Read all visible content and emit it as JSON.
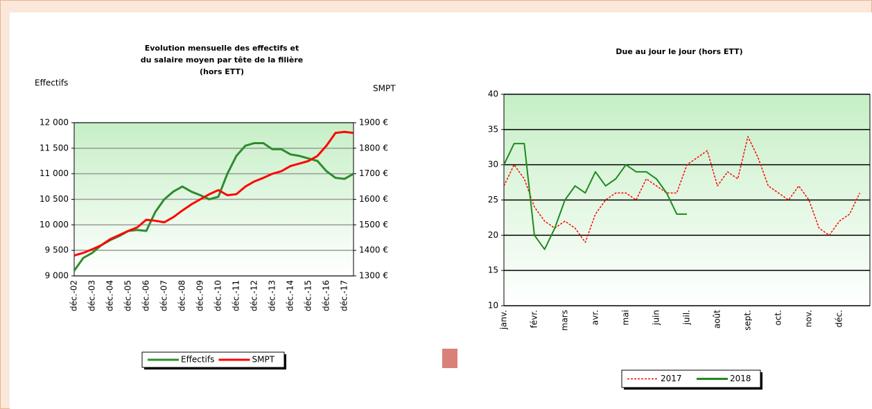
{
  "chart_data": [
    {
      "type": "line",
      "title": [
        "Evolution mensuelle des effectifs et",
        "du salaire moyen par tête de la filière",
        "(hors ETT)"
      ],
      "ylabel": "Effectifs",
      "y2label": "SMPT",
      "categories": [
        "déc.-02",
        null,
        "déc.-03",
        null,
        "déc.-04",
        null,
        "déc.-05",
        null,
        "déc.-06",
        null,
        "déc.-07",
        null,
        "déc.-08",
        null,
        "déc.-09",
        null,
        "déc.-10",
        null,
        "déc.-11",
        null,
        "déc.-12",
        null,
        "déc.-13",
        null,
        "déc.-14",
        null,
        "déc.-15",
        null,
        "déc.-16",
        null,
        "déc.-17",
        null
      ],
      "series": [
        {
          "name": "Effectifs",
          "color": "#2e8b2e",
          "values": [
            9100,
            9350,
            9450,
            9600,
            9700,
            9780,
            9880,
            9900,
            9880,
            10250,
            10500,
            10650,
            10750,
            10650,
            10580,
            10500,
            10550,
            11000,
            11350,
            11550,
            11600,
            11600,
            11480,
            11480,
            11380,
            11350,
            11300,
            11250,
            11050,
            10920,
            10900,
            11000
          ]
        },
        {
          "name": "SMPT",
          "color": "#ff0000",
          "axis": "y2",
          "values": [
            1380,
            1390,
            1404,
            1420,
            1444,
            1460,
            1476,
            1490,
            1520,
            1516,
            1510,
            1530,
            1556,
            1580,
            1600,
            1620,
            1636,
            1616,
            1620,
            1650,
            1670,
            1684,
            1700,
            1710,
            1730,
            1740,
            1750,
            1770,
            1810,
            1860,
            1864,
            1860
          ]
        }
      ],
      "ylim": [
        9000,
        12000
      ],
      "yticks": [
        {
          "value": 9000,
          "label": "9 000"
        },
        {
          "value": 9500,
          "label": "9 500"
        },
        {
          "value": 10000,
          "label": "10 000"
        },
        {
          "value": 10500,
          "label": "10 500"
        },
        {
          "value": 11000,
          "label": "11 000"
        },
        {
          "value": 11500,
          "label": "11 500"
        },
        {
          "value": 12000,
          "label": "12 000"
        }
      ],
      "y2lim": [
        1300,
        1900
      ],
      "y2ticks": [
        {
          "value": 1300,
          "label": "1300 €"
        },
        {
          "value": 1400,
          "label": "1400 €"
        },
        {
          "value": 1500,
          "label": "1500 €"
        },
        {
          "value": 1600,
          "label": "1600 €"
        },
        {
          "value": 1700,
          "label": "1700 €"
        },
        {
          "value": 1800,
          "label": "1800 €"
        },
        {
          "value": 1900,
          "label": "1900 €"
        }
      ],
      "grid": true,
      "legend": "bottom"
    },
    {
      "type": "line",
      "title": [
        "Due au jour le jour (hors ETT)"
      ],
      "categories": [
        "janv.",
        null,
        null,
        "févr.",
        null,
        null,
        "mars",
        null,
        null,
        "avr.",
        null,
        null,
        "mai",
        null,
        null,
        "juin",
        null,
        null,
        "juil.",
        null,
        null,
        "août",
        null,
        null,
        "sept.",
        null,
        null,
        "oct.",
        null,
        null,
        "nov.",
        null,
        null,
        "déc.",
        null,
        null
      ],
      "series": [
        {
          "name": "2017",
          "color": "#ff0000",
          "dash": "dashed",
          "values": [
            27,
            30,
            28,
            24,
            22,
            21,
            22,
            21,
            19,
            23,
            25,
            26,
            26,
            25,
            28,
            27,
            26,
            26,
            30,
            31,
            32,
            27,
            29,
            28,
            34,
            31,
            27,
            26,
            25,
            27,
            25,
            21,
            20,
            22,
            23,
            26
          ]
        },
        {
          "name": "2018",
          "color": "#1e8a1e",
          "values": [
            30,
            33,
            33,
            20,
            18,
            21,
            25,
            27,
            26,
            29,
            27,
            28,
            30,
            29,
            29,
            28,
            26,
            23,
            23,
            null,
            null,
            null,
            null,
            null,
            null,
            null,
            null,
            null,
            null,
            null,
            null,
            null,
            null,
            null,
            null,
            null
          ]
        }
      ],
      "ylim": [
        10,
        40
      ],
      "yticks": [
        10,
        15,
        20,
        25,
        30,
        35,
        40
      ],
      "grid": true,
      "legend": "bottom"
    }
  ]
}
